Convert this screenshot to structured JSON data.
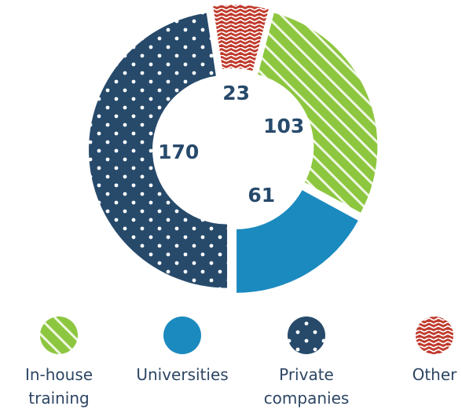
{
  "chart_data": {
    "type": "donut",
    "categories": [
      "In-house training",
      "Universities",
      "Private companies",
      "Other"
    ],
    "values": [
      103,
      61,
      170,
      23
    ],
    "colors": [
      "#8dc63f",
      "#1b8abf",
      "#274a6b",
      "#c0392b"
    ],
    "patterns": [
      "stripes",
      "solid",
      "dots",
      "zigzag"
    ],
    "legend": "bottom"
  }
}
